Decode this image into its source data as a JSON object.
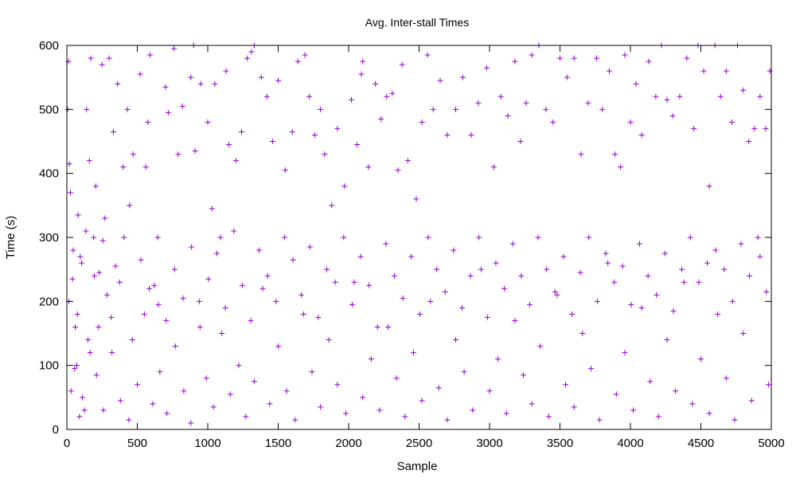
{
  "chart_data": {
    "type": "scatter",
    "title": "Avg. Inter-stall Times",
    "xlabel": "Sample",
    "ylabel": "Time (s)",
    "xlim": [
      0,
      5000
    ],
    "ylim": [
      0,
      600
    ],
    "x_ticks": [
      0,
      500,
      1000,
      1500,
      2000,
      2500,
      3000,
      3500,
      4000,
      4500,
      5000
    ],
    "y_ticks": [
      0,
      100,
      200,
      300,
      400,
      500,
      600
    ],
    "grid": false,
    "marker": "+",
    "marker_color": "#9400d3",
    "series": [
      {
        "points_note": "Samples 0..5000, one point per ~4 samples; density heavily concentrated 0-300 s, sparse 300-600 s",
        "points": [
          [
            5,
            500
          ],
          [
            12,
            575
          ],
          [
            18,
            415
          ],
          [
            25,
            370
          ],
          [
            40,
            235
          ],
          [
            55,
            95
          ],
          [
            60,
            160
          ],
          [
            70,
            100
          ],
          [
            80,
            335
          ],
          [
            95,
            270
          ],
          [
            110,
            50
          ],
          [
            125,
            30
          ],
          [
            140,
            500
          ],
          [
            160,
            420
          ],
          [
            170,
            580
          ],
          [
            190,
            300
          ],
          [
            205,
            380
          ],
          [
            230,
            245
          ],
          [
            250,
            570
          ],
          [
            270,
            330
          ],
          [
            300,
            580
          ],
          [
            330,
            465
          ],
          [
            360,
            540
          ],
          [
            375,
            230
          ],
          [
            400,
            410
          ],
          [
            430,
            500
          ],
          [
            445,
            350
          ],
          [
            470,
            430
          ],
          [
            520,
            555
          ],
          [
            560,
            410
          ],
          [
            575,
            480
          ],
          [
            590,
            585
          ],
          [
            620,
            225
          ],
          [
            650,
            195
          ],
          [
            700,
            535
          ],
          [
            720,
            495
          ],
          [
            760,
            595
          ],
          [
            790,
            430
          ],
          [
            820,
            505
          ],
          [
            880,
            550
          ],
          [
            900,
            600
          ],
          [
            910,
            435
          ],
          [
            950,
            540
          ],
          [
            1000,
            480
          ],
          [
            1030,
            345
          ],
          [
            1050,
            540
          ],
          [
            1090,
            300
          ],
          [
            1130,
            560
          ],
          [
            1150,
            445
          ],
          [
            1200,
            420
          ],
          [
            1240,
            465
          ],
          [
            1280,
            580
          ],
          [
            1310,
            590
          ],
          [
            1330,
            600
          ],
          [
            1380,
            550
          ],
          [
            1420,
            520
          ],
          [
            1460,
            450
          ],
          [
            1500,
            545
          ],
          [
            1550,
            405
          ],
          [
            1600,
            465
          ],
          [
            1640,
            575
          ],
          [
            1690,
            585
          ],
          [
            1720,
            520
          ],
          [
            1760,
            460
          ],
          [
            1800,
            500
          ],
          [
            1830,
            430
          ],
          [
            1880,
            350
          ],
          [
            1920,
            470
          ],
          [
            1970,
            380
          ],
          [
            2020,
            515
          ],
          [
            2060,
            445
          ],
          [
            2090,
            555
          ],
          [
            2100,
            575
          ],
          [
            2140,
            410
          ],
          [
            2190,
            540
          ],
          [
            2230,
            485
          ],
          [
            2270,
            520
          ],
          [
            2310,
            525
          ],
          [
            2350,
            405
          ],
          [
            2380,
            570
          ],
          [
            2420,
            420
          ],
          [
            2480,
            360
          ],
          [
            2520,
            480
          ],
          [
            2560,
            585
          ],
          [
            2600,
            500
          ],
          [
            2650,
            545
          ],
          [
            2700,
            460
          ],
          [
            2760,
            500
          ],
          [
            2810,
            550
          ],
          [
            2870,
            460
          ],
          [
            2920,
            510
          ],
          [
            2980,
            565
          ],
          [
            3030,
            410
          ],
          [
            3080,
            520
          ],
          [
            3130,
            490
          ],
          [
            3180,
            575
          ],
          [
            3220,
            450
          ],
          [
            3260,
            510
          ],
          [
            3300,
            585
          ],
          [
            3350,
            600
          ],
          [
            3400,
            500
          ],
          [
            3450,
            480
          ],
          [
            3500,
            580
          ],
          [
            3550,
            550
          ],
          [
            3600,
            580
          ],
          [
            3650,
            430
          ],
          [
            3700,
            510
          ],
          [
            3760,
            580
          ],
          [
            3800,
            500
          ],
          [
            3850,
            560
          ],
          [
            3890,
            430
          ],
          [
            3930,
            410
          ],
          [
            3960,
            585
          ],
          [
            4000,
            480
          ],
          [
            4040,
            540
          ],
          [
            4080,
            460
          ],
          [
            4130,
            575
          ],
          [
            4180,
            520
          ],
          [
            4220,
            600
          ],
          [
            4260,
            515
          ],
          [
            4300,
            490
          ],
          [
            4350,
            520
          ],
          [
            4400,
            580
          ],
          [
            4450,
            470
          ],
          [
            4480,
            600
          ],
          [
            4520,
            560
          ],
          [
            4560,
            380
          ],
          [
            4600,
            600
          ],
          [
            4640,
            520
          ],
          [
            4680,
            560
          ],
          [
            4720,
            480
          ],
          [
            4760,
            600
          ],
          [
            4800,
            530
          ],
          [
            4840,
            450
          ],
          [
            4880,
            470
          ],
          [
            4920,
            520
          ],
          [
            4960,
            470
          ],
          [
            4990,
            560
          ],
          [
            30,
            60
          ],
          [
            90,
            20
          ],
          [
            150,
            140
          ],
          [
            210,
            85
          ],
          [
            260,
            30
          ],
          [
            320,
            120
          ],
          [
            380,
            45
          ],
          [
            440,
            15
          ],
          [
            500,
            70
          ],
          [
            550,
            180
          ],
          [
            610,
            40
          ],
          [
            660,
            90
          ],
          [
            710,
            25
          ],
          [
            770,
            130
          ],
          [
            830,
            60
          ],
          [
            880,
            10
          ],
          [
            940,
            200
          ],
          [
            990,
            80
          ],
          [
            1040,
            35
          ],
          [
            1100,
            150
          ],
          [
            1160,
            55
          ],
          [
            1220,
            100
          ],
          [
            1270,
            20
          ],
          [
            1330,
            75
          ],
          [
            1390,
            220
          ],
          [
            1440,
            40
          ],
          [
            1500,
            130
          ],
          [
            1560,
            60
          ],
          [
            1620,
            15
          ],
          [
            1680,
            180
          ],
          [
            1740,
            90
          ],
          [
            1800,
            35
          ],
          [
            1860,
            140
          ],
          [
            1920,
            70
          ],
          [
            1980,
            25
          ],
          [
            2040,
            230
          ],
          [
            2100,
            50
          ],
          [
            2160,
            110
          ],
          [
            2220,
            30
          ],
          [
            2280,
            160
          ],
          [
            2340,
            80
          ],
          [
            2400,
            20
          ],
          [
            2460,
            120
          ],
          [
            2520,
            45
          ],
          [
            2580,
            200
          ],
          [
            2640,
            65
          ],
          [
            2700,
            15
          ],
          [
            2760,
            140
          ],
          [
            2820,
            90
          ],
          [
            2880,
            30
          ],
          [
            2940,
            250
          ],
          [
            3000,
            60
          ],
          [
            3060,
            110
          ],
          [
            3120,
            25
          ],
          [
            3180,
            170
          ],
          [
            3240,
            85
          ],
          [
            3300,
            40
          ],
          [
            3360,
            130
          ],
          [
            3420,
            20
          ],
          [
            3480,
            210
          ],
          [
            3540,
            70
          ],
          [
            3600,
            35
          ],
          [
            3660,
            150
          ],
          [
            3720,
            95
          ],
          [
            3780,
            15
          ],
          [
            3840,
            260
          ],
          [
            3900,
            55
          ],
          [
            3960,
            120
          ],
          [
            4020,
            30
          ],
          [
            4080,
            190
          ],
          [
            4140,
            75
          ],
          [
            4200,
            20
          ],
          [
            4260,
            140
          ],
          [
            4320,
            60
          ],
          [
            4380,
            230
          ],
          [
            4440,
            40
          ],
          [
            4500,
            110
          ],
          [
            4560,
            25
          ],
          [
            4620,
            180
          ],
          [
            4680,
            80
          ],
          [
            4740,
            15
          ],
          [
            4800,
            150
          ],
          [
            4860,
            45
          ],
          [
            4920,
            270
          ],
          [
            4980,
            70
          ],
          [
            15,
            200
          ],
          [
            45,
            280
          ],
          [
            75,
            180
          ],
          [
            105,
            260
          ],
          [
            135,
            310
          ],
          [
            165,
            120
          ],
          [
            195,
            240
          ],
          [
            225,
            160
          ],
          [
            255,
            295
          ],
          [
            285,
            210
          ],
          [
            315,
            175
          ],
          [
            345,
            255
          ],
          [
            405,
            300
          ],
          [
            465,
            140
          ],
          [
            525,
            265
          ],
          [
            585,
            220
          ],
          [
            645,
            300
          ],
          [
            705,
            170
          ],
          [
            765,
            250
          ],
          [
            825,
            205
          ],
          [
            885,
            285
          ],
          [
            945,
            160
          ],
          [
            1005,
            235
          ],
          [
            1065,
            275
          ],
          [
            1125,
            190
          ],
          [
            1185,
            310
          ],
          [
            1245,
            225
          ],
          [
            1305,
            170
          ],
          [
            1365,
            280
          ],
          [
            1425,
            240
          ],
          [
            1485,
            200
          ],
          [
            1545,
            300
          ],
          [
            1605,
            265
          ],
          [
            1665,
            210
          ],
          [
            1725,
            285
          ],
          [
            1785,
            175
          ],
          [
            1845,
            250
          ],
          [
            1905,
            230
          ],
          [
            1965,
            300
          ],
          [
            2025,
            195
          ],
          [
            2085,
            270
          ],
          [
            2145,
            225
          ],
          [
            2205,
            160
          ],
          [
            2265,
            290
          ],
          [
            2325,
            240
          ],
          [
            2385,
            205
          ],
          [
            2445,
            270
          ],
          [
            2505,
            180
          ],
          [
            2565,
            300
          ],
          [
            2625,
            250
          ],
          [
            2685,
            215
          ],
          [
            2745,
            280
          ],
          [
            2805,
            190
          ],
          [
            2865,
            240
          ],
          [
            2925,
            300
          ],
          [
            2985,
            175
          ],
          [
            3045,
            260
          ],
          [
            3105,
            220
          ],
          [
            3165,
            290
          ],
          [
            3225,
            240
          ],
          [
            3285,
            195
          ],
          [
            3345,
            300
          ],
          [
            3405,
            250
          ],
          [
            3465,
            215
          ],
          [
            3525,
            270
          ],
          [
            3585,
            180
          ],
          [
            3645,
            245
          ],
          [
            3705,
            300
          ],
          [
            3765,
            200
          ],
          [
            3825,
            275
          ],
          [
            3885,
            230
          ],
          [
            3945,
            255
          ],
          [
            4005,
            195
          ],
          [
            4065,
            290
          ],
          [
            4125,
            240
          ],
          [
            4185,
            210
          ],
          [
            4245,
            275
          ],
          [
            4305,
            185
          ],
          [
            4365,
            250
          ],
          [
            4425,
            300
          ],
          [
            4485,
            230
          ],
          [
            4545,
            260
          ],
          [
            4605,
            280
          ],
          [
            4665,
            250
          ],
          [
            4725,
            200
          ],
          [
            4785,
            290
          ],
          [
            4845,
            240
          ],
          [
            4905,
            300
          ],
          [
            4965,
            215
          ]
        ]
      }
    ]
  }
}
